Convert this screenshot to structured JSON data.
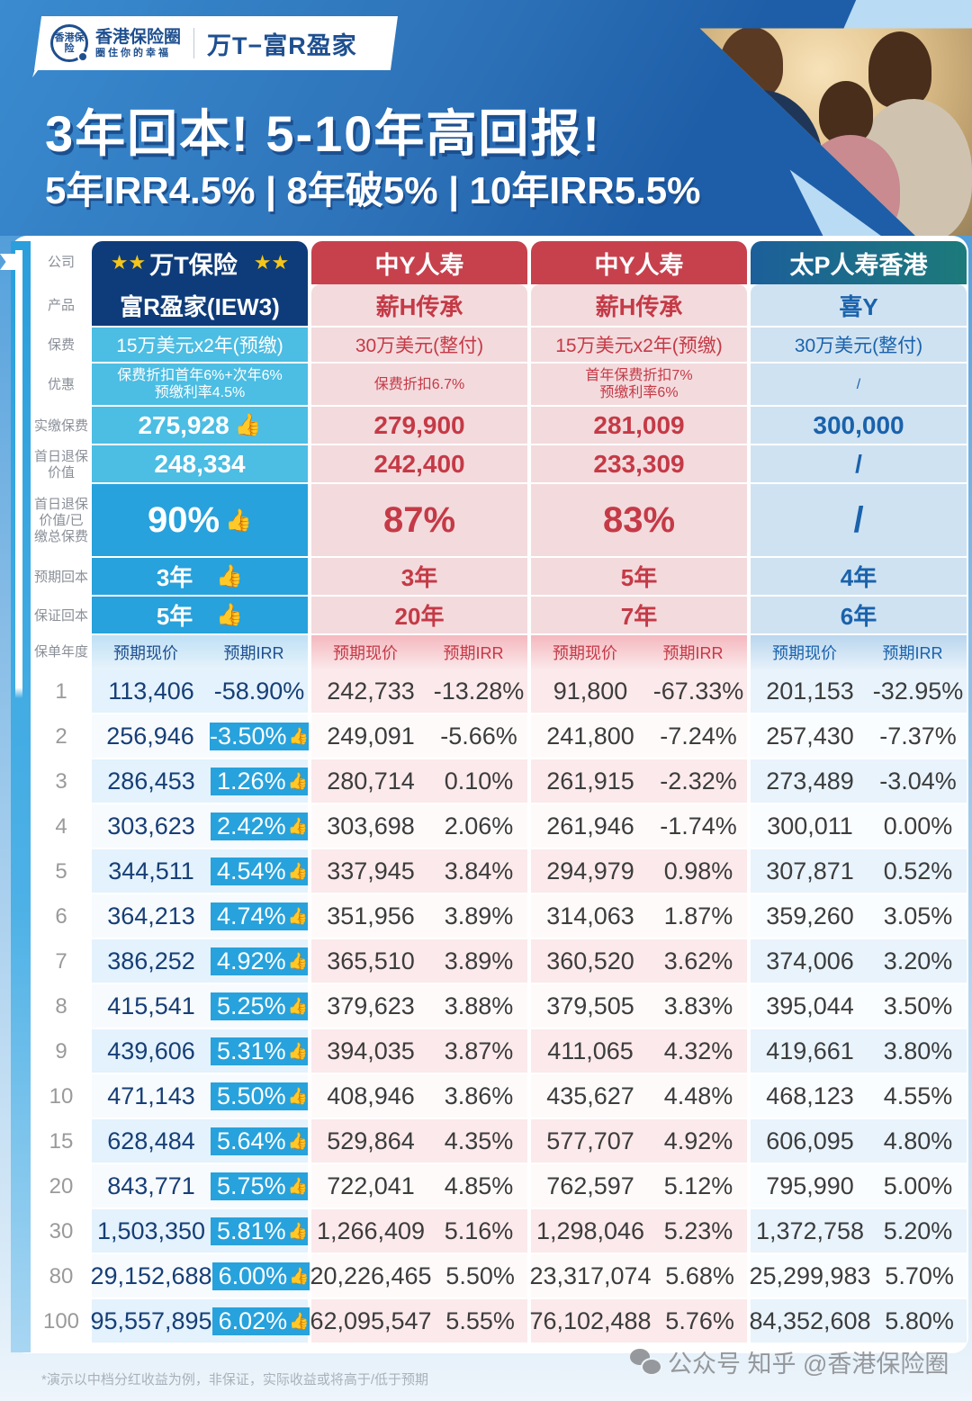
{
  "header": {
    "brand_logo_text": "香港保险",
    "brand_name": "香港保险圈",
    "brand_slogan": "圈住你的幸福",
    "product_title": "万T−富R盈家",
    "headline": "3年回本! 5-10年高回报!",
    "subheadline": "5年IRR4.5% | 8年破5% | 10年IRR5.5%"
  },
  "row_labels": {
    "company": "公司",
    "product": "产品",
    "premium": "保费",
    "discount": "优惠",
    "paid_premium": "实缴保费",
    "day1_surrender": "首日退保价值",
    "day1_ratio": "首日退保价值/已缴总保费",
    "expected_breakeven": "预期回本",
    "guaranteed_breakeven": "保证回本",
    "policy_year": "保单年度"
  },
  "columns": [
    {
      "company": "万T保险",
      "stars": "★★",
      "product": "富R盈家(IEW3)",
      "premium": "15万美元x2年(预缴)",
      "discount_line1": "保费折扣首年6%+次年6%",
      "discount_line2": "预缴利率4.5%",
      "paid_premium": "275,928",
      "day1_surrender": "248,334",
      "day1_ratio": "90%",
      "expected_breakeven": "3年",
      "guaranteed_breakeven": "5年",
      "sub_value": "预期现价",
      "sub_irr": "预期IRR",
      "color": "#0e3c7a"
    },
    {
      "company": "中Y人寿",
      "product": "薪H传承",
      "premium": "30万美元(整付)",
      "discount_line1": "保费折扣6.7%",
      "discount_line2": "",
      "paid_premium": "279,900",
      "day1_surrender": "242,400",
      "day1_ratio": "87%",
      "expected_breakeven": "3年",
      "guaranteed_breakeven": "20年",
      "sub_value": "预期现价",
      "sub_irr": "预期IRR",
      "color": "#c7414d"
    },
    {
      "company": "中Y人寿",
      "product": "薪H传承",
      "premium": "15万美元x2年(预缴)",
      "discount_line1": "首年保费折扣7%",
      "discount_line2": "预缴利率6%",
      "paid_premium": "281,009",
      "day1_surrender": "233,309",
      "day1_ratio": "83%",
      "expected_breakeven": "5年",
      "guaranteed_breakeven": "7年",
      "sub_value": "预期现价",
      "sub_irr": "预期IRR",
      "color": "#c7414d"
    },
    {
      "company": "太P人寿香港",
      "product": "喜Y",
      "premium": "30万美元(整付)",
      "discount_line1": "/",
      "discount_line2": "",
      "paid_premium": "300,000",
      "day1_surrender": "/",
      "day1_ratio": "/",
      "expected_breakeven": "4年",
      "guaranteed_breakeven": "6年",
      "sub_value": "预期现价",
      "sub_irr": "预期IRR",
      "color": "#1c6a8f"
    }
  ],
  "thumb_icon": "👍",
  "rows": [
    {
      "year": "1",
      "c1v": "113,406",
      "c1i": "-58.90%",
      "c2v": "242,733",
      "c2i": "-13.28%",
      "c3v": "91,800",
      "c3i": "-67.33%",
      "c4v": "201,153",
      "c4i": "-32.95%"
    },
    {
      "year": "2",
      "c1v": "256,946",
      "c1i": "-3.50%",
      "c2v": "249,091",
      "c2i": "-5.66%",
      "c3v": "241,800",
      "c3i": "-7.24%",
      "c4v": "257,430",
      "c4i": "-7.37%"
    },
    {
      "year": "3",
      "c1v": "286,453",
      "c1i": "1.26%",
      "c2v": "280,714",
      "c2i": "0.10%",
      "c3v": "261,915",
      "c3i": "-2.32%",
      "c4v": "273,489",
      "c4i": "-3.04%"
    },
    {
      "year": "4",
      "c1v": "303,623",
      "c1i": "2.42%",
      "c2v": "303,698",
      "c2i": "2.06%",
      "c3v": "261,946",
      "c3i": "-1.74%",
      "c4v": "300,011",
      "c4i": "0.00%"
    },
    {
      "year": "5",
      "c1v": "344,511",
      "c1i": "4.54%",
      "c2v": "337,945",
      "c2i": "3.84%",
      "c3v": "294,979",
      "c3i": "0.98%",
      "c4v": "307,871",
      "c4i": "0.52%"
    },
    {
      "year": "6",
      "c1v": "364,213",
      "c1i": "4.74%",
      "c2v": "351,956",
      "c2i": "3.89%",
      "c3v": "314,063",
      "c3i": "1.87%",
      "c4v": "359,260",
      "c4i": "3.05%"
    },
    {
      "year": "7",
      "c1v": "386,252",
      "c1i": "4.92%",
      "c2v": "365,510",
      "c2i": "3.89%",
      "c3v": "360,520",
      "c3i": "3.62%",
      "c4v": "374,006",
      "c4i": "3.20%"
    },
    {
      "year": "8",
      "c1v": "415,541",
      "c1i": "5.25%",
      "c2v": "379,623",
      "c2i": "3.88%",
      "c3v": "379,505",
      "c3i": "3.83%",
      "c4v": "395,044",
      "c4i": "3.50%"
    },
    {
      "year": "9",
      "c1v": "439,606",
      "c1i": "5.31%",
      "c2v": "394,035",
      "c2i": "3.87%",
      "c3v": "411,065",
      "c3i": "4.32%",
      "c4v": "419,661",
      "c4i": "3.80%"
    },
    {
      "year": "10",
      "c1v": "471,143",
      "c1i": "5.50%",
      "c2v": "408,946",
      "c2i": "3.86%",
      "c3v": "435,627",
      "c3i": "4.48%",
      "c4v": "468,123",
      "c4i": "4.55%"
    },
    {
      "year": "15",
      "c1v": "628,484",
      "c1i": "5.64%",
      "c2v": "529,864",
      "c2i": "4.35%",
      "c3v": "577,707",
      "c3i": "4.92%",
      "c4v": "606,095",
      "c4i": "4.80%"
    },
    {
      "year": "20",
      "c1v": "843,771",
      "c1i": "5.75%",
      "c2v": "722,041",
      "c2i": "4.85%",
      "c3v": "762,597",
      "c3i": "5.12%",
      "c4v": "795,990",
      "c4i": "5.00%"
    },
    {
      "year": "30",
      "c1v": "1,503,350",
      "c1i": "5.81%",
      "c2v": "1,266,409",
      "c2i": "5.16%",
      "c3v": "1,298,046",
      "c3i": "5.23%",
      "c4v": "1,372,758",
      "c4i": "5.20%"
    },
    {
      "year": "80",
      "c1v": "29,152,688",
      "c1i": "6.00%",
      "c2v": "20,226,465",
      "c2i": "5.50%",
      "c3v": "23,317,074",
      "c3i": "5.68%",
      "c4v": "25,299,983",
      "c4i": "5.70%"
    },
    {
      "year": "100",
      "c1v": "95,557,895",
      "c1i": "6.02%",
      "c2v": "62,095,547",
      "c2i": "5.55%",
      "c3v": "76,102,488",
      "c3i": "5.76%",
      "c4v": "84,352,608",
      "c4i": "5.80%"
    }
  ],
  "footer": {
    "disclaimer": "*演示以中档分红收益为例，非保证，实际收益或将高于/低于预期",
    "watermark": "公众号 知乎 @香港保险圈"
  },
  "colors": {
    "primary_navy": "#0e3c7a",
    "primary_blue": "#27a2dc",
    "light_blue": "#4cbde3",
    "competitor_red": "#c7414d",
    "competitor_red_bg": "#f3dadd",
    "competitor_blue": "#1a62ac",
    "competitor_blue_bg": "#cfe2f1"
  }
}
